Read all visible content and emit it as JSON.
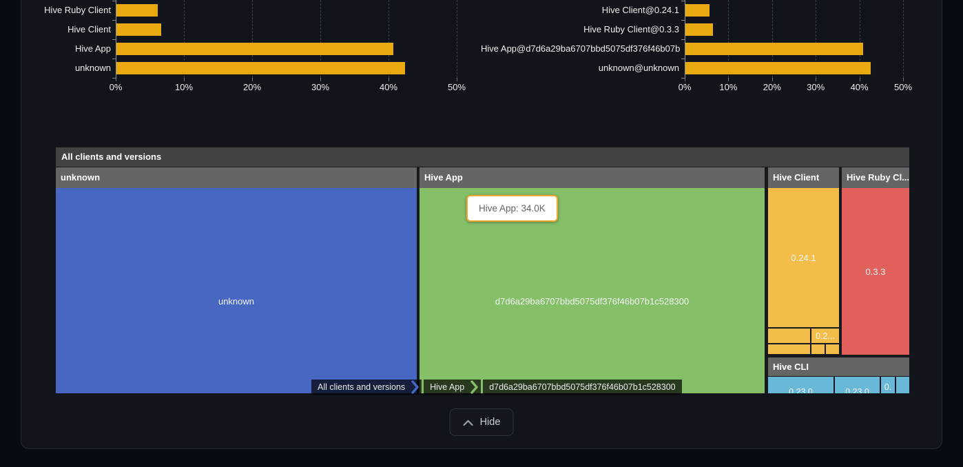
{
  "chart_data": [
    {
      "type": "bar",
      "orientation": "horizontal",
      "title": "",
      "categories": [
        "Hive Ruby Client",
        "Hive Client",
        "Hive App",
        "unknown"
      ],
      "values": [
        6.1,
        6.6,
        40.6,
        42.3
      ],
      "unit": "%",
      "xticks": [
        "0%",
        "10%",
        "20%",
        "30%",
        "40%",
        "50%"
      ],
      "xlim": [
        0,
        50
      ],
      "bar_color": "#e8aa0e",
      "grid": "dashed-vertical",
      "legend": null
    },
    {
      "type": "bar",
      "orientation": "horizontal",
      "title": "",
      "categories": [
        "Hive Client@0.24.1",
        "Hive Ruby Client@0.3.3",
        "Hive App@d7d6a29ba6707bbd5075df376f46b07b",
        "unknown@unknown"
      ],
      "values": [
        5.5,
        6.3,
        40.7,
        42.4
      ],
      "unit": "%",
      "xticks": [
        "0%",
        "10%",
        "20%",
        "30%",
        "40%",
        "50%"
      ],
      "xlim": [
        0,
        50
      ],
      "bar_color": "#e8aa0e",
      "grid": "dashed-vertical",
      "legend": null
    },
    {
      "type": "treemap",
      "title": "All clients and versions",
      "sections": [
        {
          "name": "unknown",
          "color": "#4767c3",
          "leaf": "unknown"
        },
        {
          "name": "Hive App",
          "color": "#85c069",
          "leaf": "d7d6a29ba6707bbd5075df376f46b07b1c528300",
          "tooltip_value": "34.0K"
        },
        {
          "name": "Hive Client",
          "color": "#f3bd4a",
          "leaves": [
            "0.24.1",
            "0.2..."
          ]
        },
        {
          "name": "Hive Ruby Cl...",
          "color": "#e2605c",
          "leaf": "0.3.3"
        },
        {
          "name": "Hive CLI",
          "color": "#68b8d8",
          "leaves": [
            "0.23.0",
            "0.23.0",
            "0."
          ]
        }
      ]
    }
  ],
  "tooltip": {
    "text": "Hive App: 34.0K"
  },
  "breadcrumb": {
    "items": [
      "All clients and versions",
      "Hive App",
      "d7d6a29ba6707bbd5075df376f46b07b1c528300"
    ],
    "chevron_colors": [
      "#4767c3",
      "#85c069"
    ]
  },
  "hide_button": {
    "label": "Hide"
  },
  "colors": {
    "bar": "#e8aa0e",
    "treemap_title_bg": "#424242",
    "treemap_header_bg": "#656565",
    "panel_bg": "#11141a",
    "page_bg": "#070b12",
    "tooltip_border": "#f1a62a"
  }
}
